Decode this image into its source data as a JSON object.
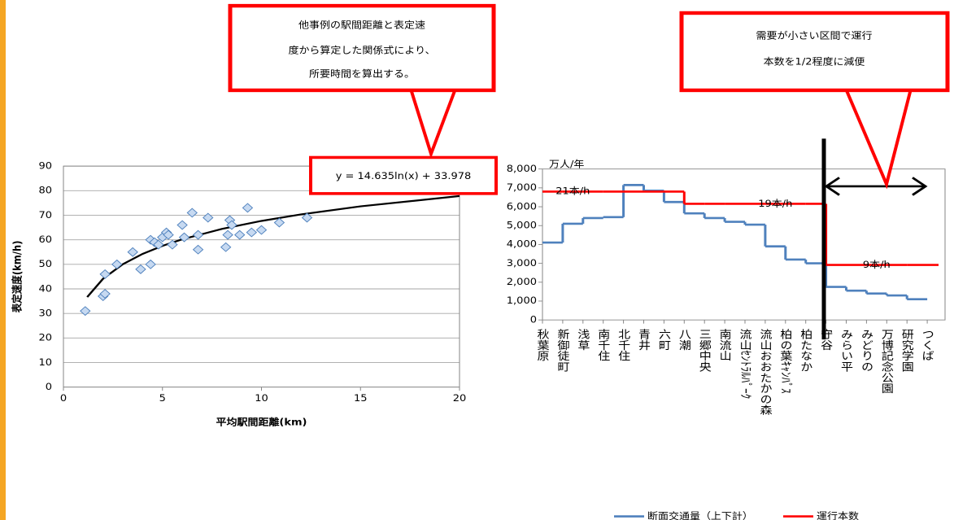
{
  "chart_data": [
    {
      "type": "scatter",
      "xlabel": "平均駅間距離(km)",
      "ylabel": "表定速度(km/h)",
      "annotation": "y = 14.635ln(x) + 33.978",
      "x": [
        1.1,
        2.0,
        2.1,
        2.1,
        2.7,
        3.5,
        3.9,
        4.4,
        4.4,
        4.6,
        4.8,
        5.0,
        5.2,
        5.3,
        5.5,
        6.0,
        6.1,
        6.5,
        6.8,
        6.8,
        7.3,
        8.2,
        8.3,
        8.4,
        8.5,
        8.9,
        9.3,
        9.5,
        10.0,
        10.9,
        12.3
      ],
      "values": [
        31,
        37,
        38,
        46,
        50,
        55,
        48,
        50,
        60,
        59,
        58,
        61,
        63,
        62,
        58,
        66,
        61,
        71,
        62,
        56,
        69,
        57,
        62,
        68,
        66,
        62,
        73,
        63,
        64,
        67,
        69
      ],
      "color": "#4f81bd",
      "trendline": {
        "x": [
          1.2,
          2,
          3,
          4,
          5,
          6,
          8,
          10,
          12,
          15,
          20
        ],
        "values": [
          36.65,
          44.12,
          50.06,
          54.27,
          57.53,
          60.2,
          64.41,
          67.68,
          70.34,
          73.61,
          77.82
        ],
        "color": "#000000"
      },
      "xlim": [
        0,
        20
      ],
      "xticks": [
        0,
        5,
        10,
        15,
        20
      ],
      "ylim": [
        0,
        90
      ],
      "yticks": [
        0,
        10,
        20,
        30,
        40,
        50,
        60,
        70,
        80,
        90
      ],
      "grid": true
    },
    {
      "type": "line",
      "step": true,
      "unit_label": "万人/年",
      "categories": [
        "秋葉原",
        "新御徒町",
        "浅草",
        "南千住",
        "北千住",
        "青井",
        "六町",
        "八潮",
        "三郷中央",
        "南流山",
        "流山ｾﾝﾄﾗﾙﾊﾟｰｸ",
        "流山おおたかの森",
        "柏の葉ｷｬﾝﾊﾟｽ",
        "柏たなか",
        "守谷",
        "みらい平",
        "みどりの",
        "万博記念公園",
        "研究学園",
        "つくば"
      ],
      "series": [
        {
          "name": "断面交通量（上下計）",
          "color": "#4f81bd",
          "values": [
            4100,
            5100,
            5400,
            5450,
            7150,
            6850,
            6250,
            5650,
            5400,
            5200,
            5050,
            3900,
            3200,
            3000,
            1750,
            1550,
            1400,
            1300,
            1100,
            null
          ]
        },
        {
          "name": "運行本数",
          "color": "#ff0000",
          "axis": "y2",
          "values": [
            21,
            21,
            21,
            21,
            21,
            21,
            21,
            19,
            19,
            19,
            19,
            19,
            19,
            19,
            9,
            9,
            9,
            9,
            9,
            null
          ],
          "value_labels": [
            null,
            "21本/h",
            null,
            null,
            null,
            null,
            null,
            null,
            null,
            null,
            null,
            "19本/h",
            null,
            null,
            null,
            null,
            "9本/h",
            null,
            null,
            null
          ]
        }
      ],
      "ylim": [
        0,
        8000
      ],
      "yticks": [
        0,
        {
          "value": 1000,
          "label": "1,000"
        },
        {
          "value": 2000,
          "label": "2,000"
        },
        {
          "value": 3000,
          "label": "3,000"
        },
        {
          "value": 4000,
          "label": "4,000"
        },
        {
          "value": 5000,
          "label": "5,000"
        },
        {
          "value": 6000,
          "label": "6,000"
        },
        {
          "value": 7000,
          "label": "7,000"
        },
        {
          "value": 8000,
          "label": "8,000"
        }
      ],
      "y2lim": [
        0,
        24.7
      ],
      "legend": "bottom"
    }
  ],
  "callouts": [
    {
      "lines": [
        "他事例の駅間距離と表定速",
        "度から算定した関係式により、",
        "所要時間を算出する。"
      ]
    },
    {
      "lines": [
        "需要が小さい区間で運行",
        "本数を1/2程度に減便"
      ]
    }
  ]
}
